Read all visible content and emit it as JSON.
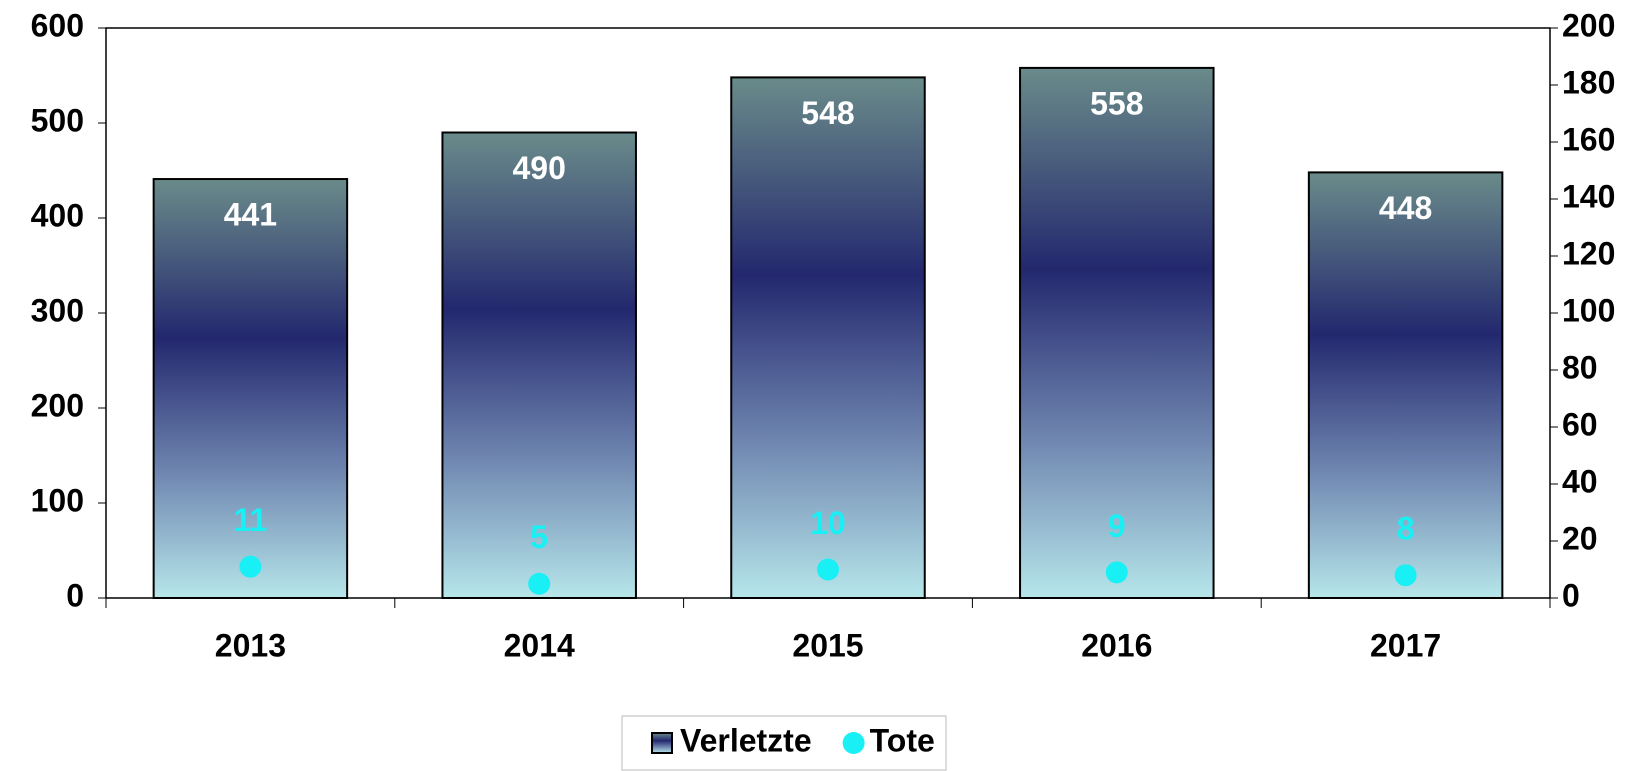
{
  "chart_data": {
    "type": "bar",
    "categories": [
      "2013",
      "2014",
      "2015",
      "2016",
      "2017"
    ],
    "series": [
      {
        "name": "Verletzte",
        "color": "#23286e",
        "values": [
          441,
          490,
          548,
          558,
          448
        ]
      },
      {
        "name": "Tote",
        "color": "#19f0f5",
        "axis": "y2",
        "values": [
          11,
          5,
          10,
          9,
          8
        ]
      }
    ],
    "ylim": [
      0,
      600
    ],
    "yticks": [
      0,
      100,
      200,
      300,
      400,
      500,
      600
    ],
    "y2lim": [
      0,
      200
    ],
    "y2ticks": [
      0,
      20,
      40,
      60,
      80,
      100,
      120,
      140,
      160,
      180,
      200
    ],
    "legend": "bottom"
  }
}
